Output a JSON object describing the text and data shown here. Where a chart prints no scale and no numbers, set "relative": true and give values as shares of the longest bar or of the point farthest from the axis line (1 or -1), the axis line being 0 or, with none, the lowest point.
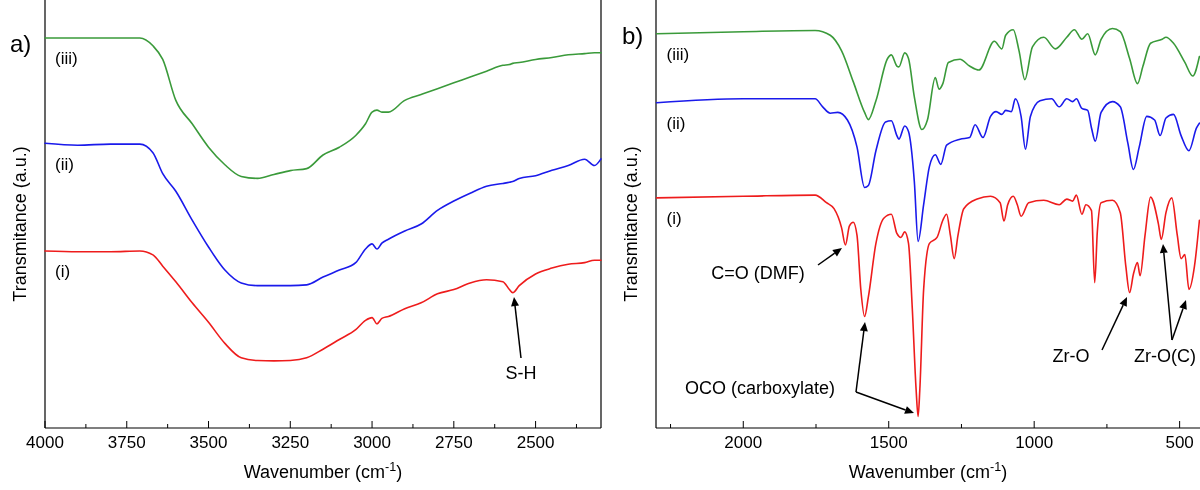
{
  "chart_data": [
    {
      "type": "line",
      "title": "a)",
      "relative": true,
      "xlabel": "Wavenumber (cm$^{-1}$)",
      "ylabel": "Transmitance (a.u.)",
      "xlim": [
        4000,
        2300
      ],
      "xticks": [
        4000,
        {
          "value": 3875,
          "label": null
        },
        3750,
        {
          "value": 3625,
          "label": null
        },
        3500,
        {
          "value": 3375,
          "label": null
        },
        3250,
        {
          "value": 3125,
          "label": null
        },
        3000,
        {
          "value": 2875,
          "label": null
        },
        2750,
        {
          "value": 2625,
          "label": null
        },
        2500,
        {
          "value": 2375,
          "label": null
        }
      ],
      "annotations": [
        "S-H"
      ],
      "series": [
        {
          "name": "(iii)",
          "color": "#3a9a3a",
          "x": [
            4000,
            3900,
            3800,
            3710,
            3670,
            3640,
            3600,
            3550,
            3500,
            3450,
            3400,
            3350,
            3300,
            3250,
            3200,
            3150,
            3100,
            3050,
            3020,
            3000,
            2985,
            2970,
            2950,
            2900,
            2850,
            2800,
            2750,
            2700,
            2650,
            2600,
            2580,
            2570,
            2550,
            2500,
            2450,
            2400,
            2350,
            2320,
            2300
          ],
          "values": [
            1.0,
            1.0,
            1.0,
            1.0,
            0.98,
            0.945,
            0.84,
            0.78,
            0.72,
            0.675,
            0.645,
            0.64,
            0.65,
            0.66,
            0.665,
            0.7,
            0.72,
            0.75,
            0.78,
            0.81,
            0.815,
            0.81,
            0.81,
            0.84,
            0.855,
            0.87,
            0.885,
            0.9,
            0.915,
            0.93,
            0.932,
            0.935,
            0.937,
            0.945,
            0.95,
            0.957,
            0.96,
            0.962,
            0.962
          ]
        },
        {
          "name": "(ii)",
          "color": "#1a1aeb",
          "x": [
            4000,
            3900,
            3800,
            3710,
            3670,
            3640,
            3600,
            3550,
            3500,
            3450,
            3400,
            3350,
            3300,
            3250,
            3200,
            3150,
            3100,
            3050,
            3020,
            3000,
            2985,
            2970,
            2950,
            2900,
            2850,
            2800,
            2750,
            2700,
            2650,
            2600,
            2580,
            2570,
            2550,
            2500,
            2450,
            2400,
            2350,
            2320,
            2300
          ],
          "values": [
            0.73,
            0.725,
            0.728,
            0.728,
            0.706,
            0.652,
            0.607,
            0.533,
            0.464,
            0.405,
            0.372,
            0.365,
            0.365,
            0.365,
            0.367,
            0.387,
            0.405,
            0.424,
            0.459,
            0.472,
            0.459,
            0.474,
            0.484,
            0.505,
            0.523,
            0.558,
            0.582,
            0.602,
            0.62,
            0.627,
            0.63,
            0.632,
            0.64,
            0.647,
            0.661,
            0.673,
            0.689,
            0.673,
            0.69
          ]
        },
        {
          "name": "(i)",
          "color": "#ee1c1c",
          "x": [
            4000,
            3900,
            3800,
            3710,
            3670,
            3640,
            3600,
            3550,
            3500,
            3450,
            3400,
            3350,
            3300,
            3250,
            3200,
            3150,
            3100,
            3050,
            3020,
            3000,
            2985,
            2970,
            2950,
            2900,
            2850,
            2800,
            2750,
            2700,
            2650,
            2600,
            2580,
            2570,
            2550,
            2500,
            2450,
            2400,
            2350,
            2320,
            2300
          ],
          "values": [
            0.454,
            0.452,
            0.452,
            0.454,
            0.444,
            0.415,
            0.375,
            0.321,
            0.271,
            0.217,
            0.18,
            0.173,
            0.172,
            0.173,
            0.18,
            0.202,
            0.227,
            0.252,
            0.276,
            0.283,
            0.267,
            0.281,
            0.286,
            0.306,
            0.321,
            0.344,
            0.355,
            0.372,
            0.38,
            0.375,
            0.355,
            0.347,
            0.365,
            0.395,
            0.41,
            0.42,
            0.424,
            0.43,
            0.43
          ]
        }
      ]
    },
    {
      "type": "line",
      "title": "b)",
      "relative": true,
      "xlabel": "Wavenumber (cm$^{-1}$)",
      "ylabel": "Transmitance (a.u.)",
      "xlim": [
        2300,
        430
      ],
      "xticks": [
        {
          "value": 2250,
          "label": null
        },
        2000,
        {
          "value": 1750,
          "label": null
        },
        1500,
        {
          "value": 1250,
          "label": null
        },
        1000,
        {
          "value": 750,
          "label": null
        },
        500
      ],
      "annotations": [
        "C=O (DMF)",
        "OCO (carboxylate)",
        "Zr-O",
        "Zr-O(C)"
      ],
      "series": [
        {
          "name": "(iii)",
          "color": "#3a9a3a",
          "x": [
            2298,
            2000,
            1753,
            1701,
            1662,
            1622,
            1583,
            1570,
            1544,
            1504,
            1491,
            1472,
            1465,
            1445,
            1432,
            1412,
            1386,
            1367,
            1340,
            1327,
            1314,
            1295,
            1255,
            1222,
            1190,
            1137,
            1111,
            1098,
            1072,
            1052,
            1032,
            1006,
            967,
            927,
            888,
            862,
            836,
            816,
            790,
            770,
            731,
            704,
            672,
            645,
            626,
            600,
            560,
            547,
            521,
            482,
            455,
            432
          ],
          "values": [
            0.987,
            0.992,
            0.995,
            0.983,
            0.944,
            0.867,
            0.79,
            0.772,
            0.819,
            0.925,
            0.934,
            0.906,
            0.904,
            0.939,
            0.925,
            0.829,
            0.747,
            0.771,
            0.877,
            0.848,
            0.862,
            0.915,
            0.923,
            0.906,
            0.896,
            0.968,
            0.949,
            0.983,
            0.997,
            0.944,
            0.872,
            0.954,
            0.978,
            0.949,
            0.978,
            0.997,
            0.973,
            0.987,
            0.934,
            0.973,
            1.0,
            0.992,
            0.925,
            0.862,
            0.906,
            0.963,
            0.973,
            0.978,
            0.963,
            0.915,
            0.881,
            0.93
          ]
        },
        {
          "name": "(ii)",
          "color": "#1a1aeb",
          "x": [
            2298,
            2000,
            1753,
            1727,
            1701,
            1675,
            1642,
            1609,
            1583,
            1570,
            1544,
            1511,
            1491,
            1472,
            1465,
            1445,
            1432,
            1412,
            1399,
            1380,
            1360,
            1340,
            1321,
            1301,
            1255,
            1222,
            1203,
            1176,
            1150,
            1131,
            1111,
            1098,
            1078,
            1065,
            1045,
            1030,
            1013,
            980,
            940,
            914,
            888,
            868,
            855,
            836,
            816,
            803,
            790,
            770,
            731,
            704,
            678,
            659,
            639,
            613,
            586,
            567,
            547,
            521,
            495,
            468,
            442,
            432
          ],
          "values": [
            0.814,
            0.824,
            0.824,
            0.804,
            0.788,
            0.79,
            0.771,
            0.703,
            0.602,
            0.607,
            0.694,
            0.766,
            0.769,
            0.732,
            0.723,
            0.756,
            0.742,
            0.617,
            0.467,
            0.559,
            0.655,
            0.684,
            0.66,
            0.708,
            0.723,
            0.727,
            0.759,
            0.727,
            0.78,
            0.792,
            0.785,
            0.795,
            0.792,
            0.824,
            0.78,
            0.698,
            0.78,
            0.819,
            0.824,
            0.804,
            0.824,
            0.817,
            0.824,
            0.8,
            0.795,
            0.751,
            0.718,
            0.79,
            0.817,
            0.804,
            0.713,
            0.647,
            0.703,
            0.78,
            0.771,
            0.732,
            0.776,
            0.785,
            0.732,
            0.694,
            0.751,
            0.763
          ]
        },
        {
          "name": "(i)",
          "color": "#ee1c1c",
          "x": [
            2298,
            2000,
            1753,
            1714,
            1688,
            1662,
            1649,
            1635,
            1622,
            1609,
            1596,
            1583,
            1570,
            1544,
            1517,
            1491,
            1472,
            1458,
            1445,
            1432,
            1419,
            1406,
            1399,
            1393,
            1380,
            1360,
            1334,
            1314,
            1301,
            1288,
            1275,
            1262,
            1242,
            1196,
            1150,
            1117,
            1104,
            1091,
            1072,
            1058,
            1045,
            1019,
            967,
            914,
            888,
            868,
            855,
            836,
            822,
            803,
            792,
            783,
            770,
            731,
            704,
            685,
            672,
            659,
            645,
            636,
            619,
            600,
            573,
            563,
            547,
            527,
            508,
            495,
            482,
            468,
            449,
            432
          ],
          "values": [
            0.576,
            0.58,
            0.583,
            0.564,
            0.549,
            0.501,
            0.458,
            0.506,
            0.515,
            0.482,
            0.347,
            0.279,
            0.328,
            0.462,
            0.525,
            0.535,
            0.487,
            0.477,
            0.491,
            0.462,
            0.299,
            0.098,
            0.029,
            0.098,
            0.347,
            0.462,
            0.477,
            0.52,
            0.535,
            0.482,
            0.424,
            0.482,
            0.549,
            0.573,
            0.58,
            0.564,
            0.518,
            0.559,
            0.58,
            0.559,
            0.53,
            0.564,
            0.57,
            0.559,
            0.573,
            0.568,
            0.583,
            0.535,
            0.559,
            0.544,
            0.364,
            0.491,
            0.564,
            0.57,
            0.539,
            0.405,
            0.339,
            0.385,
            0.414,
            0.381,
            0.482,
            0.578,
            0.511,
            0.472,
            0.539,
            0.576,
            0.482,
            0.424,
            0.434,
            0.347,
            0.405,
            0.52
          ]
        }
      ]
    }
  ]
}
